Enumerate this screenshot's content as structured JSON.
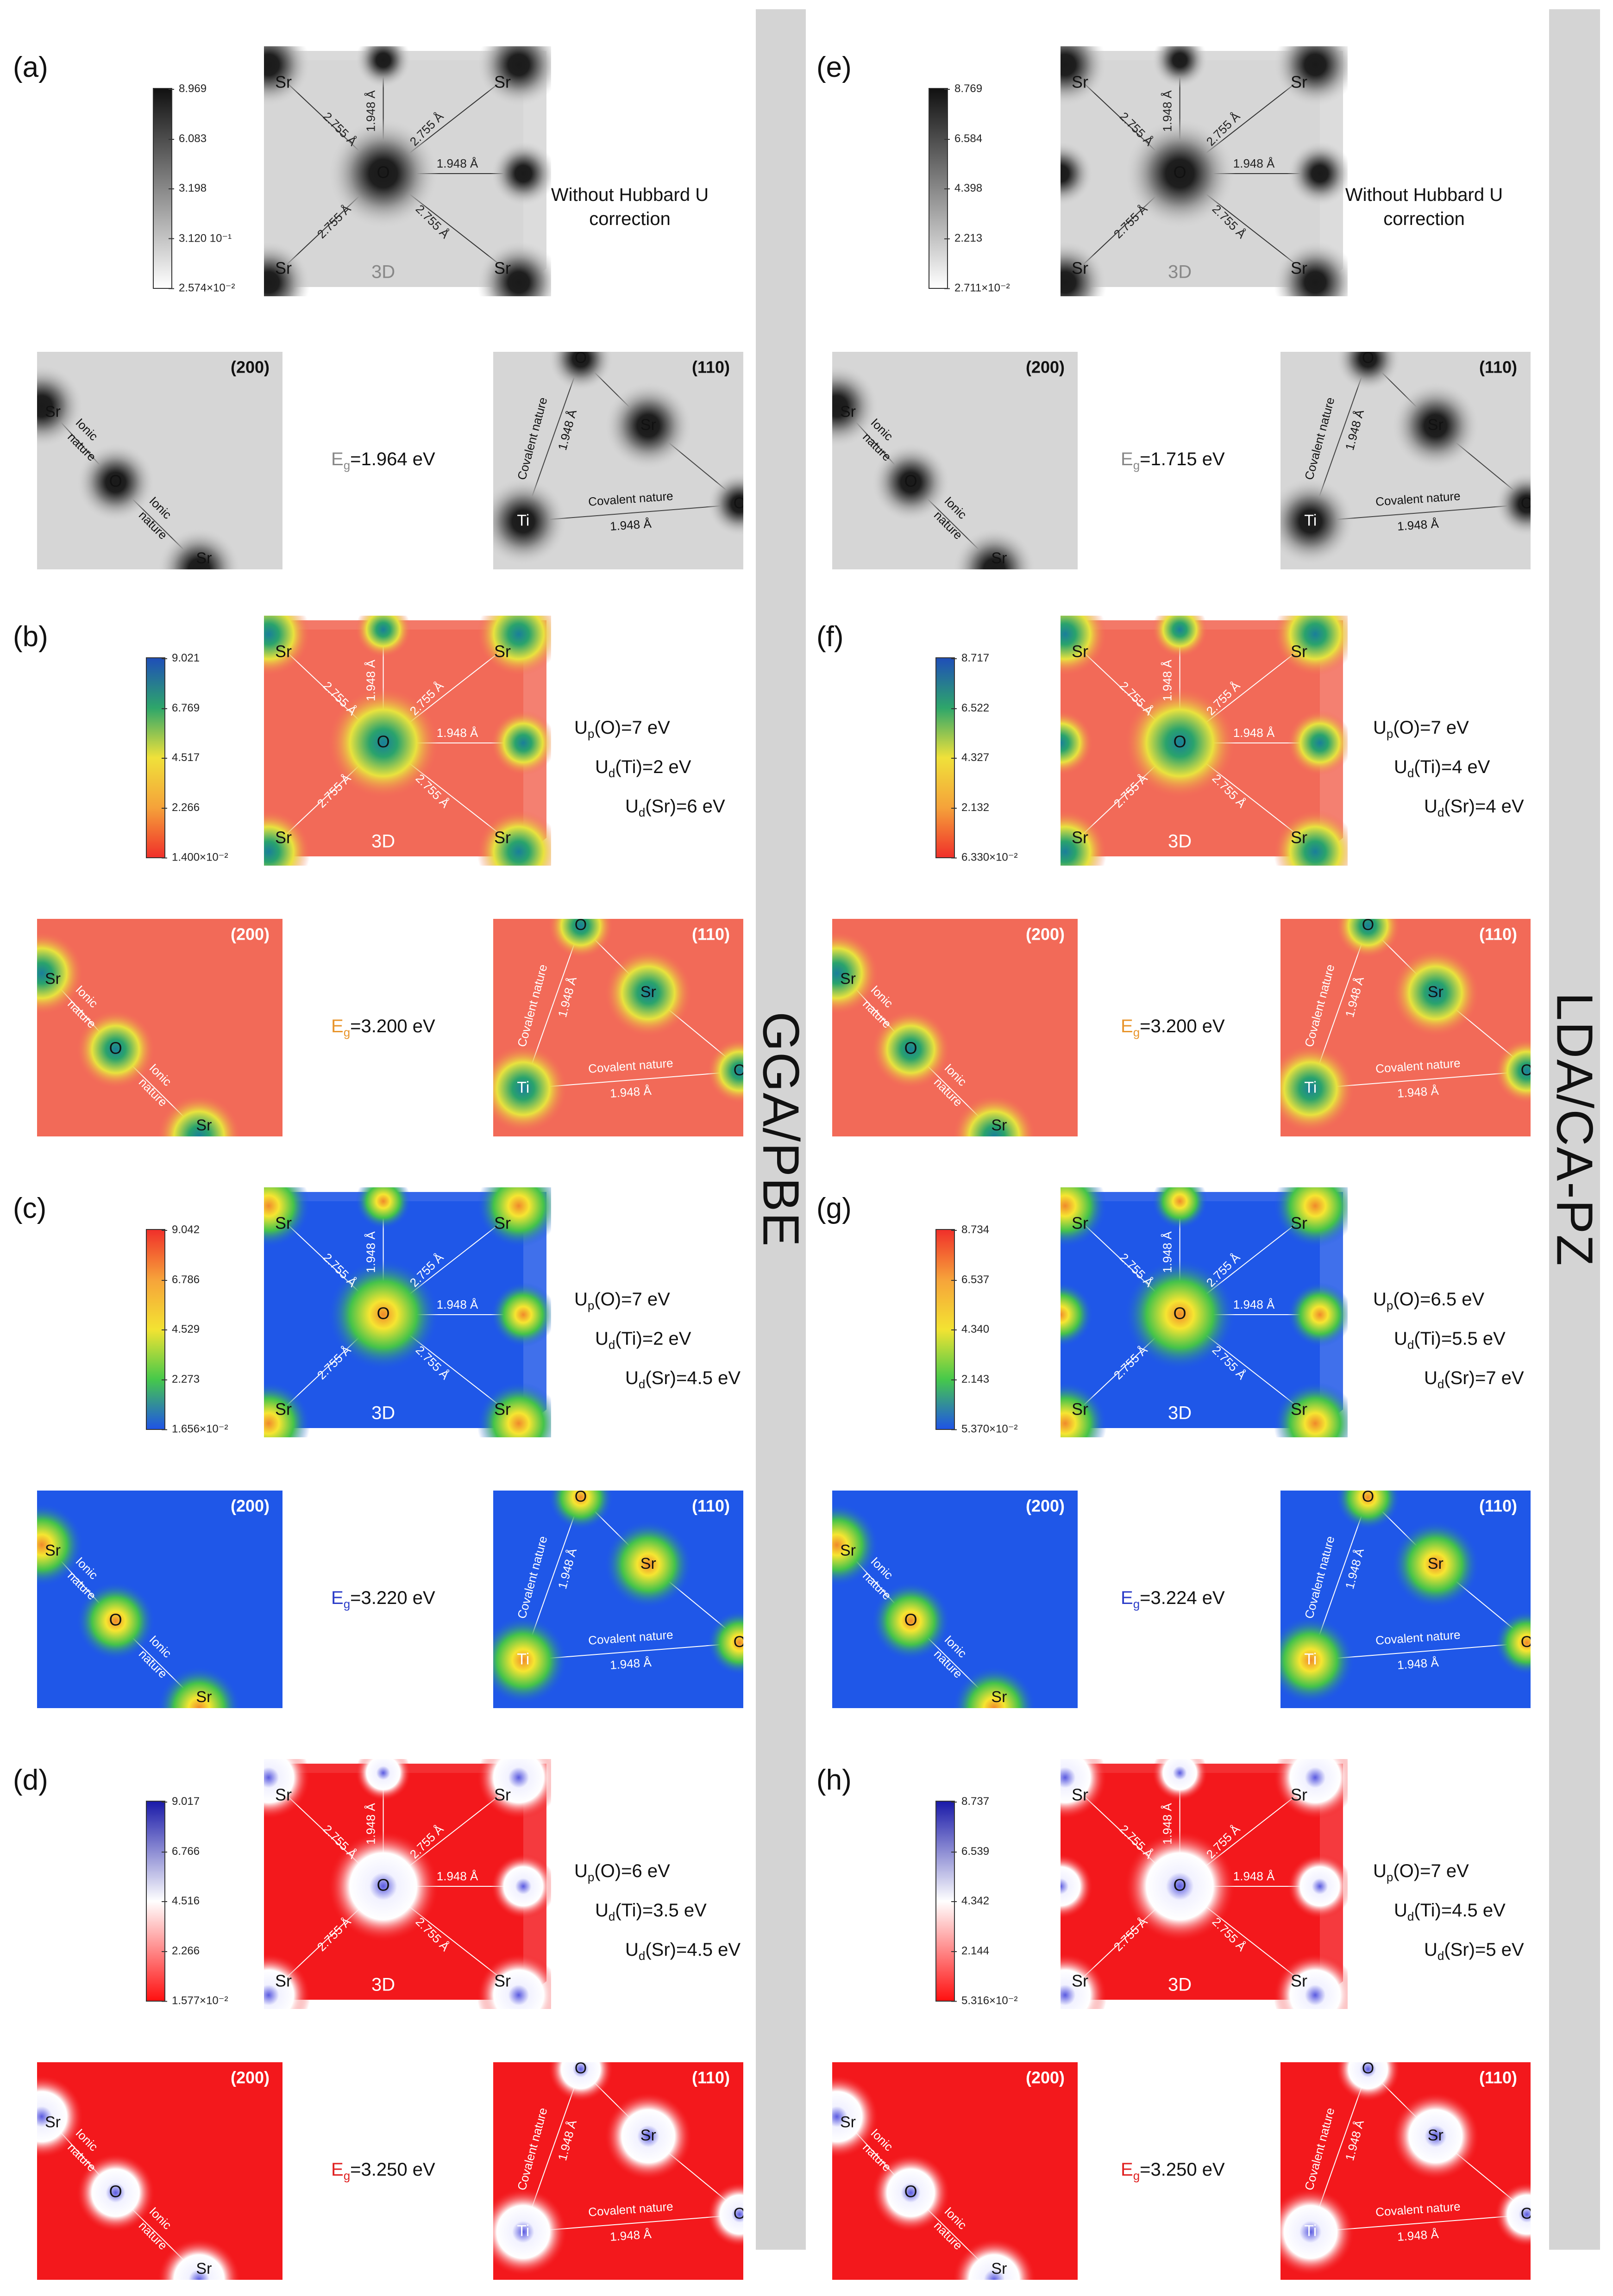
{
  "section_titles": {
    "left": "GGA/PBE",
    "right": "LDA/CA-PZ"
  },
  "common": {
    "label_3d": "3D",
    "plane_200": "(200)",
    "plane_110": "(110)",
    "bond_1948": "1.948 Å",
    "bond_2755": "2.755 Å",
    "ionic": "Ionic",
    "nature": "nature",
    "covalent_nature": "Covalent  nature",
    "sr": "Sr",
    "o": "O",
    "ti": "Ti"
  },
  "panels": [
    {
      "label": "(a)",
      "colormap": "gray",
      "cbar_ticks": [
        "8.969",
        "6.083",
        "3.198",
        "3.120 10⁻¹",
        "2.574×10⁻²"
      ],
      "info": [
        "Without Hubbard U",
        "correction"
      ],
      "eg_prefix": "E",
      "eg_sub": "g",
      "eg_value": "=1.964 eV",
      "eg_color": "#888888"
    },
    {
      "label": "(b)",
      "colormap": "rygb",
      "cbar_ticks": [
        "9.021",
        "6.769",
        "4.517",
        "2.266",
        "1.400×10⁻²"
      ],
      "u_o": [
        "U",
        "p",
        "(O)=7 eV"
      ],
      "u_ti": [
        "U",
        "d",
        "(Ti)=2 eV"
      ],
      "u_sr": [
        "U",
        "d",
        "(Sr)=6 eV"
      ],
      "eg_prefix": "E",
      "eg_sub": "g",
      "eg_value": "=3.200 eV",
      "eg_color": "#e8952c"
    },
    {
      "label": "(c)",
      "colormap": "bgyr",
      "cbar_ticks": [
        "9.042",
        "6.786",
        "4.529",
        "2.273",
        "1.656×10⁻²"
      ],
      "u_o": [
        "U",
        "p",
        "(O)=7 eV"
      ],
      "u_ti": [
        "U",
        "d",
        "(Ti)=2 eV"
      ],
      "u_sr": [
        "U",
        "d",
        "(Sr)=4.5 eV"
      ],
      "eg_prefix": "E",
      "eg_sub": "g",
      "eg_value": "=3.220 eV",
      "eg_color": "#2b3cc8"
    },
    {
      "label": "(d)",
      "colormap": "rwb",
      "cbar_ticks": [
        "9.017",
        "6.766",
        "4.516",
        "2.266",
        "1.577×10⁻²"
      ],
      "u_o": [
        "U",
        "p",
        "(O)=6 eV"
      ],
      "u_ti": [
        "U",
        "d",
        "(Ti)=3.5 eV"
      ],
      "u_sr": [
        "U",
        "d",
        "(Sr)=4.5 eV"
      ],
      "eg_prefix": "E",
      "eg_sub": "g",
      "eg_value": "=3.250 eV",
      "eg_color": "#e02020"
    },
    {
      "label": "(e)",
      "colormap": "gray",
      "cbar_ticks": [
        "8.769",
        "6.584",
        "4.398",
        "2.213",
        "2.711×10⁻²"
      ],
      "info": [
        "Without Hubbard U",
        "correction"
      ],
      "eg_prefix": "E",
      "eg_sub": "g",
      "eg_value": "=1.715 eV",
      "eg_color": "#888888"
    },
    {
      "label": "(f)",
      "colormap": "rygb",
      "cbar_ticks": [
        "8.717",
        "6.522",
        "4.327",
        "2.132",
        "6.330×10⁻²"
      ],
      "u_o": [
        "U",
        "p",
        "(O)=7 eV"
      ],
      "u_ti": [
        "U",
        "d",
        "(Ti)=4 eV"
      ],
      "u_sr": [
        "U",
        "d",
        "(Sr)=4 eV"
      ],
      "eg_prefix": "E",
      "eg_sub": "g",
      "eg_value": "=3.200 eV",
      "eg_color": "#e8952c"
    },
    {
      "label": "(g)",
      "colormap": "bgyr",
      "cbar_ticks": [
        "8.734",
        "6.537",
        "4.340",
        "2.143",
        "5.370×10⁻²"
      ],
      "u_o": [
        "U",
        "p",
        "(O)=6.5 eV"
      ],
      "u_ti": [
        "U",
        "d",
        "(Ti)=5.5 eV"
      ],
      "u_sr": [
        "U",
        "d",
        "(Sr)=7 eV"
      ],
      "eg_prefix": "E",
      "eg_sub": "g",
      "eg_value": "=3.224 eV",
      "eg_color": "#2b3cc8"
    },
    {
      "label": "(h)",
      "colormap": "rwb",
      "cbar_ticks": [
        "8.737",
        "6.539",
        "4.342",
        "2.144",
        "5.316×10⁻²"
      ],
      "u_o": [
        "U",
        "p",
        "(O)=7 eV"
      ],
      "u_ti": [
        "U",
        "d",
        "(Ti)=4.5 eV"
      ],
      "u_sr": [
        "U",
        "d",
        "(Sr)=5 eV"
      ],
      "eg_prefix": "E",
      "eg_sub": "g",
      "eg_value": "=3.250 eV",
      "eg_color": "#e02020"
    }
  ]
}
